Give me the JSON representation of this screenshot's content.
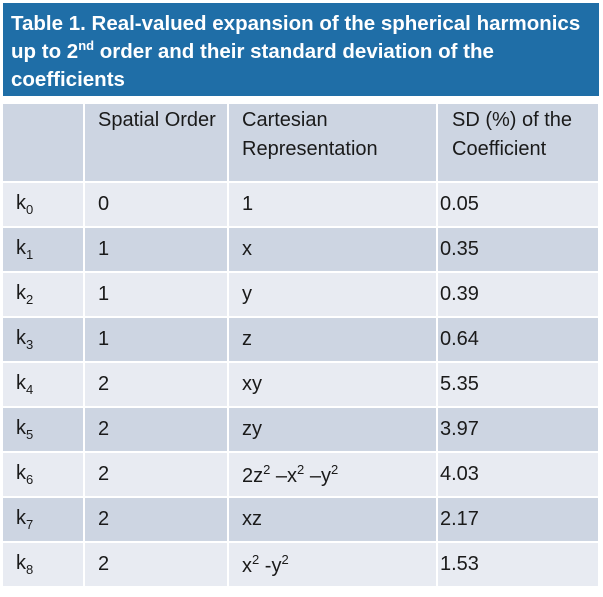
{
  "caption": {
    "part1": "Table 1. Real-valued expansion of the spherical harmonics up to 2",
    "sup": "nd",
    "part2": " order and their standard deviation of the coefficients"
  },
  "headers": {
    "col0": "",
    "col1": "Spatial Order",
    "col2": "Cartesian Representation",
    "col3": "SD (%) of the Coefficient"
  },
  "rows": [
    {
      "k": "k",
      "sub": "0",
      "order": "0",
      "cart": [
        "1"
      ],
      "sd": "0.05"
    },
    {
      "k": "k",
      "sub": "1",
      "order": "1",
      "cart": [
        "x"
      ],
      "sd": "0.35"
    },
    {
      "k": "k",
      "sub": "2",
      "order": "1",
      "cart": [
        "y"
      ],
      "sd": "0.39"
    },
    {
      "k": "k",
      "sub": "3",
      "order": "1",
      "cart": [
        "z"
      ],
      "sd": "0.64"
    },
    {
      "k": "k",
      "sub": "4",
      "order": "2",
      "cart": [
        "xy"
      ],
      "sd": "5.35"
    },
    {
      "k": "k",
      "sub": "5",
      "order": "2",
      "cart": [
        "zy"
      ],
      "sd": "3.97"
    },
    {
      "k": "k",
      "sub": "6",
      "order": "2",
      "cart": [
        "2z",
        "2",
        " –x",
        "2",
        " –y",
        "2"
      ],
      "sd": "4.03"
    },
    {
      "k": "k",
      "sub": "7",
      "order": "2",
      "cart": [
        "xz"
      ],
      "sd": "2.17"
    },
    {
      "k": "k",
      "sub": "8",
      "order": "2",
      "cart": [
        "x",
        "2",
        " -y",
        "2"
      ],
      "sd": "1.53"
    }
  ],
  "colors": {
    "caption_bg": "#1f6ea7",
    "header_bg": "#cdd5e2",
    "row_light": "#e8ebf2",
    "row_dark": "#cdd5e2"
  }
}
